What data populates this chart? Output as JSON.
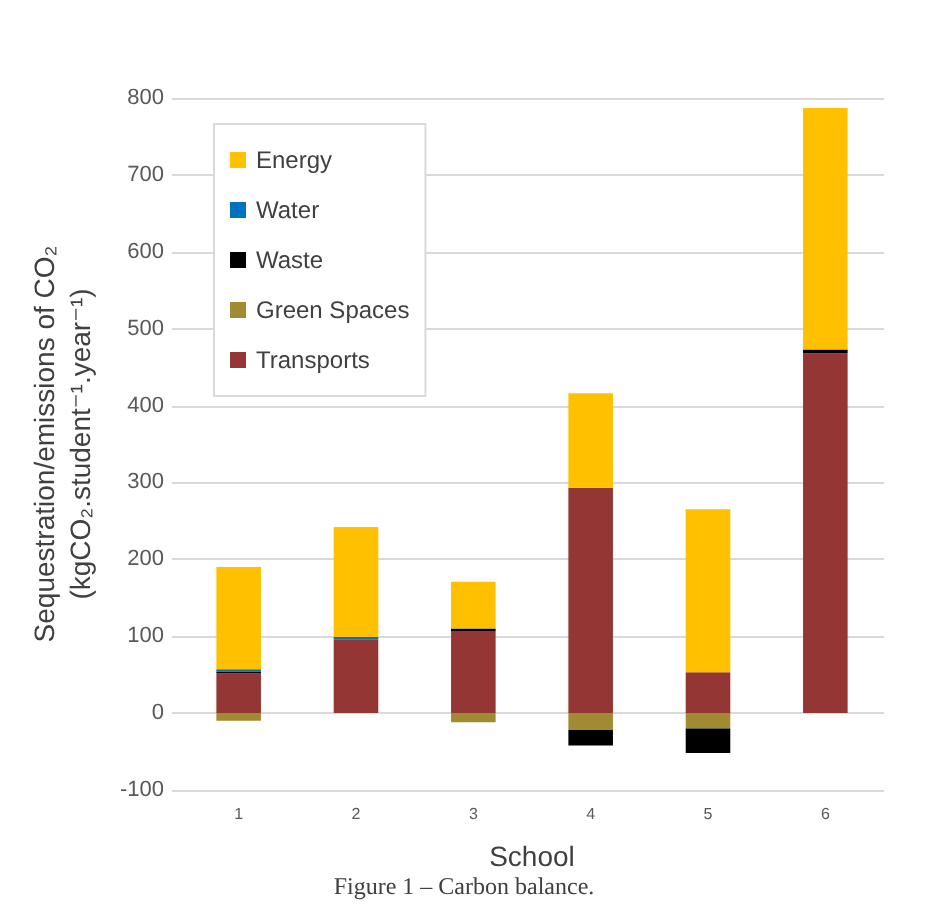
{
  "chart_data": {
    "type": "bar",
    "stacked": true,
    "xlabel": "School",
    "ylabel": "Sequestration/emissions of CO₂\n(kgCO₂.student⁻¹.year⁻¹)",
    "categories": [
      "1",
      "2",
      "3",
      "4",
      "5",
      "6"
    ],
    "series": [
      {
        "name": "Transports",
        "color": "#943634",
        "values": [
          52,
          96,
          106,
          293,
          53,
          468
        ]
      },
      {
        "name": "Green Spaces",
        "color": "#a08a32",
        "values": [
          -10,
          null,
          -12,
          -22,
          -20,
          null
        ]
      },
      {
        "name": "Waste",
        "color": "#000000",
        "values": [
          2,
          null,
          4,
          -20,
          -32,
          5
        ]
      },
      {
        "name": "Water",
        "color": "#0070c0",
        "values": [
          3,
          3,
          null,
          null,
          null,
          null
        ]
      },
      {
        "name": "Energy",
        "color": "#ffc000",
        "values": [
          133,
          143,
          61,
          123,
          212,
          314
        ]
      }
    ],
    "ylim": [
      -100,
      800
    ],
    "yticks": [
      -100,
      0,
      100,
      200,
      300,
      400,
      500,
      600,
      700,
      800
    ],
    "grid": "y",
    "legend": "top left",
    "annotations": [
      "Figure 1 – Carbon balance."
    ]
  }
}
